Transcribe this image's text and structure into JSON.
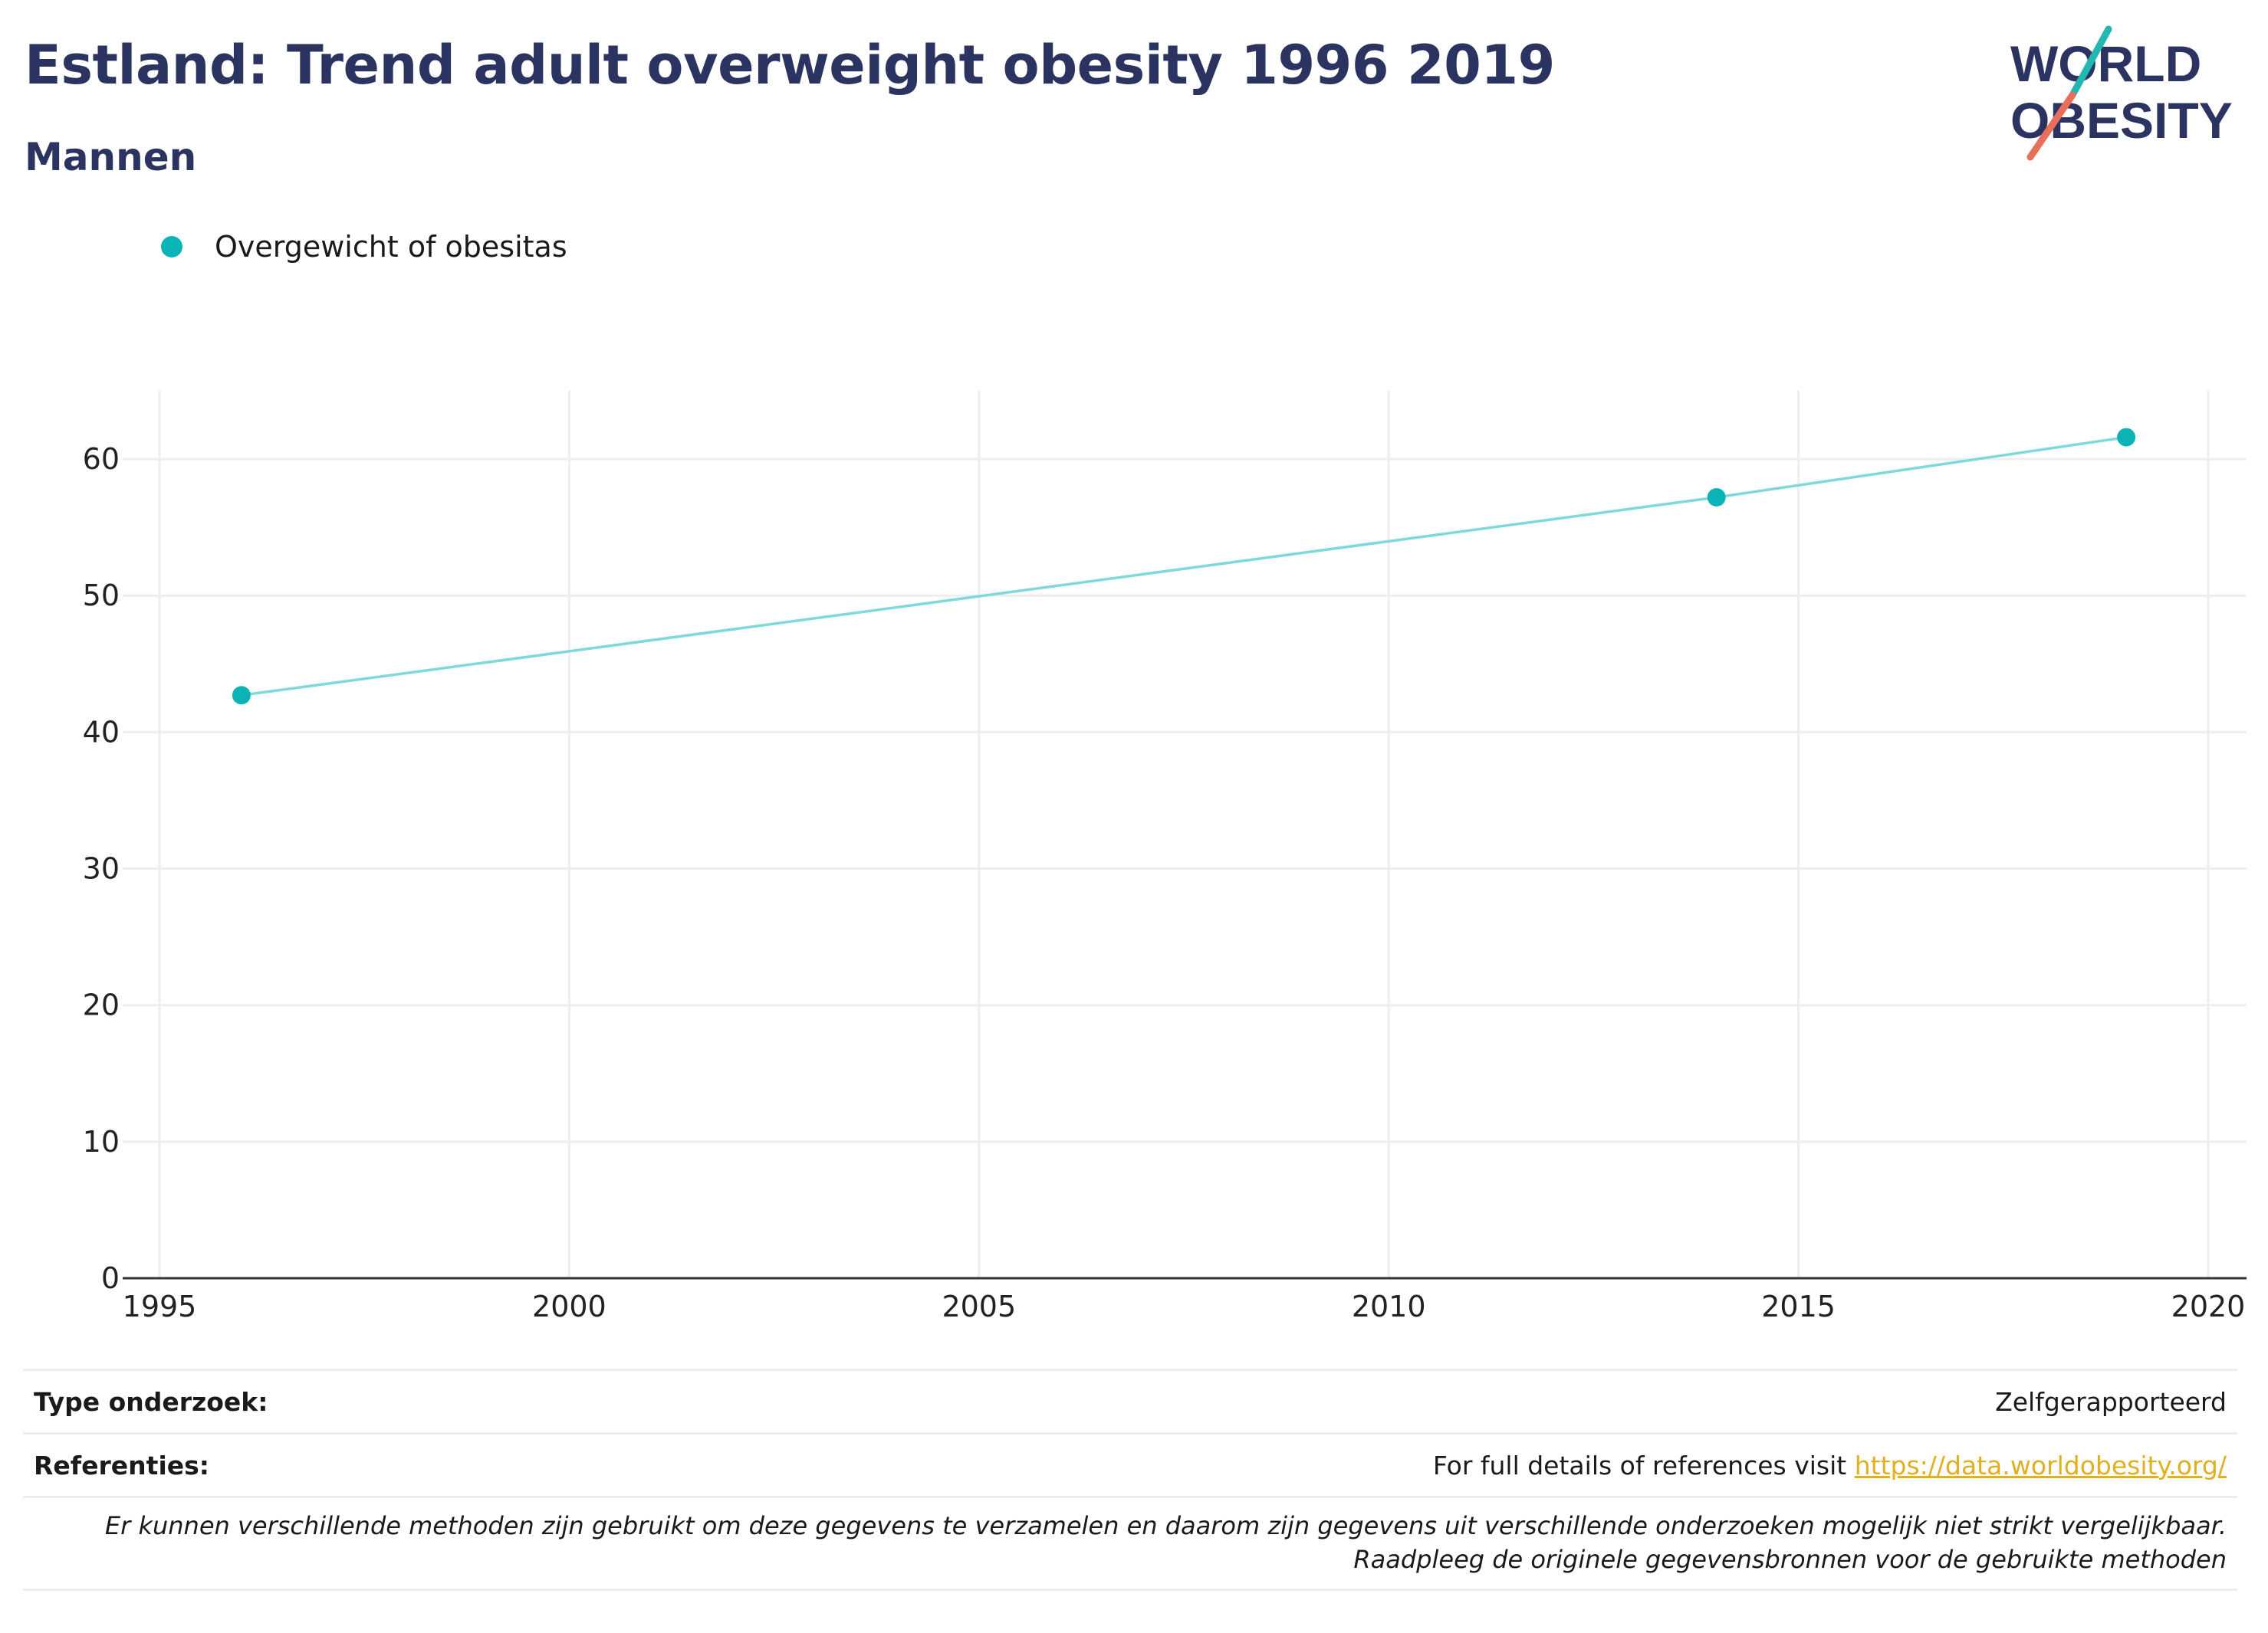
{
  "title": "Estland: Trend adult overweight obesity 1996 2019",
  "subtitle": "Mannen",
  "logo": {
    "line1": "WORLD",
    "line2": "OBESITY"
  },
  "legend": {
    "label": "Overgewicht of obesitas"
  },
  "colors": {
    "accent": "#0ab3b5",
    "line": "#7fd8d9",
    "title": "#2b3460",
    "link": "#e0b020",
    "logo_teal": "#22b8b0",
    "logo_red": "#e8705a"
  },
  "chart_data": {
    "type": "line",
    "title": "Estland: Trend adult overweight obesity 1996 2019",
    "subtitle": "Mannen",
    "xlabel": "",
    "ylabel": "",
    "xlim": [
      1995,
      2020
    ],
    "ylim": [
      0,
      65
    ],
    "xticks": [
      1995,
      2000,
      2005,
      2010,
      2015,
      2020
    ],
    "yticks": [
      0,
      10,
      20,
      30,
      40,
      50,
      60
    ],
    "grid": true,
    "legend_position": "top-left",
    "series": [
      {
        "name": "Overgewicht of obesitas",
        "x": [
          1996,
          2014,
          2019
        ],
        "y": [
          42.7,
          57.2,
          61.6
        ]
      }
    ]
  },
  "footer": {
    "type_label": "Type onderzoek:",
    "type_value": "Zelfgerapporteerd",
    "ref_label": "Referenties:",
    "ref_text": "For full details of references visit ",
    "ref_link": "https://data.worldobesity.org/",
    "note": "Er kunnen verschillende methoden zijn gebruikt om deze gegevens te verzamelen en daarom zijn gegevens uit verschillende onderzoeken mogelijk niet strikt vergelijkbaar. Raadpleeg de originele gegevensbronnen voor de gebruikte methoden"
  }
}
